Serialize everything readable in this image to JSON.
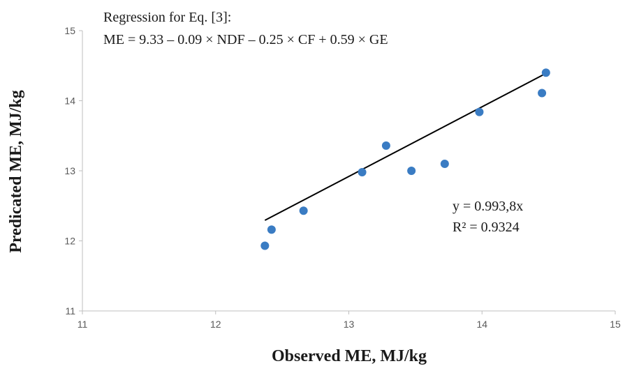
{
  "chart_data": {
    "type": "scatter",
    "title": "",
    "xlabel": "Observed ME, MJ/kg",
    "ylabel": "Predicated ME, MJ/kg",
    "xlim": [
      11,
      15
    ],
    "ylim": [
      11,
      15
    ],
    "x_ticks": [
      "11",
      "12",
      "13",
      "14",
      "15"
    ],
    "y_ticks": [
      "11",
      "12",
      "13",
      "14",
      "15"
    ],
    "grid": false,
    "marker_color": "#3a7cc3",
    "trendline_color": "#000000",
    "series": [
      {
        "x": [
          12.37,
          12.42,
          12.66,
          13.1,
          13.28,
          13.47,
          13.72,
          13.98,
          14.45,
          14.48
        ],
        "y": [
          11.93,
          12.16,
          12.43,
          12.98,
          13.36,
          13.0,
          13.1,
          13.84,
          14.11,
          14.4
        ]
      }
    ],
    "trendline": {
      "slope": 0.9938,
      "x_range": [
        12.37,
        14.48
      ]
    },
    "annotations": {
      "regression_title": "Regression for Eq. [3]:",
      "regression_formula": "ME = 9.33 – 0.09 × NDF – 0.25 × CF + 0.59 × GE",
      "fit_equation": "y = 0.993,8x",
      "r_squared": "R² = 0.9324"
    }
  }
}
